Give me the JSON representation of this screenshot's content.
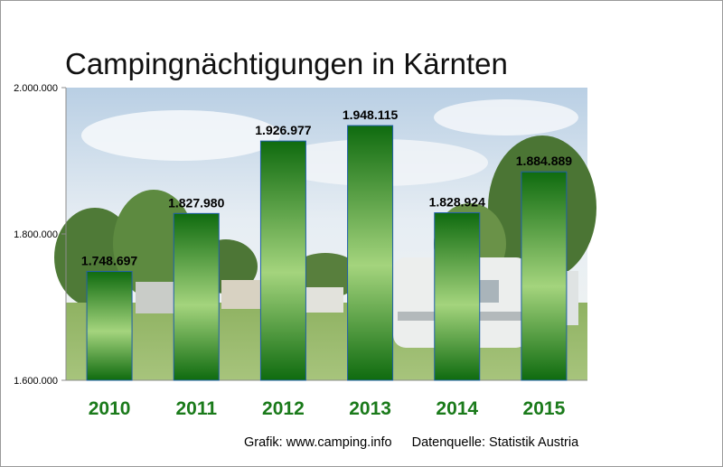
{
  "chart_data": {
    "type": "bar",
    "title": "Campingnächtigungen in Kärnten",
    "categories": [
      "2010",
      "2011",
      "2012",
      "2013",
      "2014",
      "2015"
    ],
    "values": [
      1748697,
      1827980,
      1926977,
      1948115,
      1828924,
      1884889
    ],
    "value_labels": [
      "1.748.697",
      "1.827.980",
      "1.926.977",
      "1.948.115",
      "1.828.924",
      "1.884.889"
    ],
    "ylim": [
      1600000,
      2000000
    ],
    "yticks": [
      1600000,
      1800000,
      2000000
    ],
    "ytick_labels": [
      "1.600.000",
      "1.800.000",
      "2.000.000"
    ],
    "xlabel": "",
    "ylabel": "",
    "grid": false,
    "legend": "none"
  },
  "colors": {
    "bar_dark": "#0f6b0f",
    "bar_light": "#9fd27a",
    "category_label": "#1a7a1a",
    "value_label": "#000000"
  },
  "footer": {
    "credit": "Grafik: www.camping.info",
    "source": "Datenquelle: Statistik Austria"
  }
}
